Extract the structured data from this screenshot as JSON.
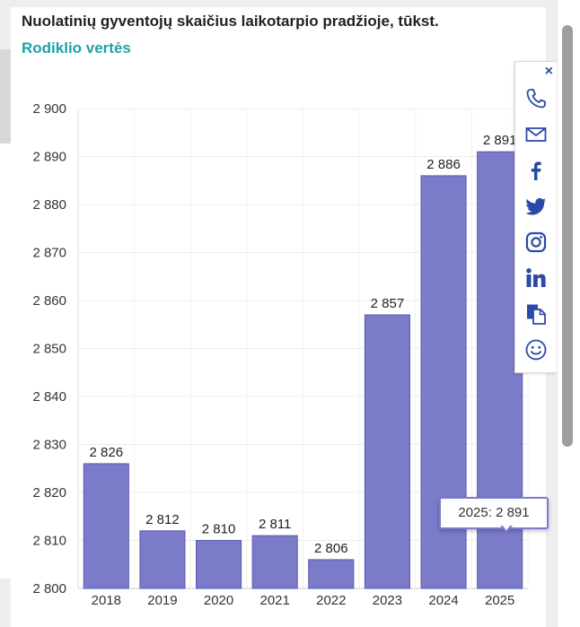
{
  "header": {
    "title": "Nuolatinių gyventojų skaičius laikotarpio pradžioje, tūkst.",
    "subtitle_link": "Rodiklio vertės"
  },
  "chart_data": {
    "type": "bar",
    "title": "Nuolatinių gyventojų skaičius laikotarpio pradžioje, tūkst.",
    "xlabel": "",
    "ylabel": "",
    "categories": [
      "2018",
      "2019",
      "2020",
      "2021",
      "2022",
      "2023",
      "2024",
      "2025"
    ],
    "values": [
      2826,
      2812,
      2810,
      2811,
      2806,
      2857,
      2886,
      2891
    ],
    "value_labels": [
      "2 826",
      "2 812",
      "2 810",
      "2 811",
      "2 806",
      "2 857",
      "2 886",
      "2 891"
    ],
    "ylim": [
      2800,
      2900
    ],
    "yticks": [
      2800,
      2810,
      2820,
      2830,
      2840,
      2850,
      2860,
      2870,
      2880,
      2890,
      2900
    ],
    "ytick_labels": [
      "2 800",
      "2 810",
      "2 820",
      "2 830",
      "2 840",
      "2 850",
      "2 860",
      "2 870",
      "2 880",
      "2 890",
      "2 900"
    ],
    "grid": true,
    "bar_color": "#7b7bca",
    "bar_edge_color": "#5a5ab0"
  },
  "tooltip": {
    "text": "2025: 2 891"
  },
  "share": {
    "close_symbol": "×",
    "buttons": [
      "phone-icon",
      "email-icon",
      "facebook-icon",
      "twitter-icon",
      "instagram-icon",
      "linkedin-icon",
      "copy-icon",
      "smiley-icon"
    ],
    "icon_color": "#2b4aa8"
  }
}
